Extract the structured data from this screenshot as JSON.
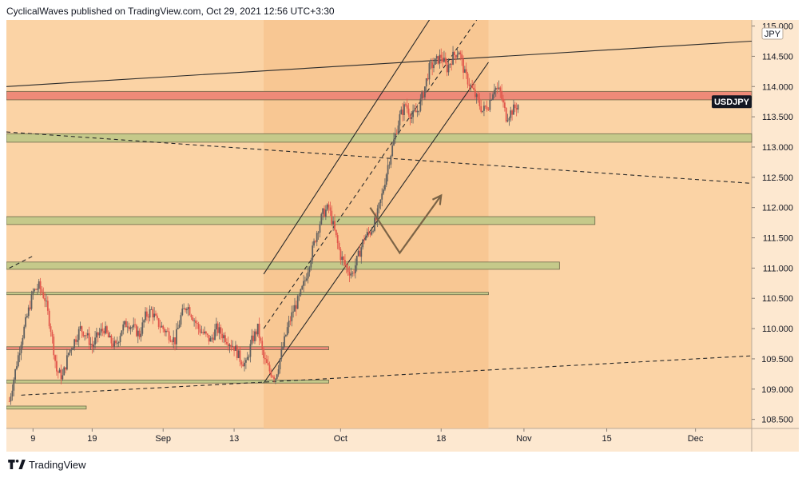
{
  "header": {
    "text": "CyclicalWaves published on TradingView.com, Oct 29, 2021 12:56 UTC+3:30"
  },
  "footer": {
    "brand": "TradingView",
    "logo": "tradingview-logo-icon"
  },
  "colors": {
    "background": "#fbd3a5",
    "axis_background": "#fde8d0",
    "candle_up": "#5f5f5f",
    "candle_down": "#e2574c",
    "zone_olive": "#c5c98a",
    "zone_red": "#ee8a78",
    "channel_fill": "#f7c48f",
    "line": "#2a2a2a",
    "arrow": "#7b6346",
    "label_bg": "#131722"
  },
  "chart_data": {
    "type": "candlestick",
    "symbol": "USDJPY",
    "currency": "JPY",
    "ylim": [
      108.35,
      115.1
    ],
    "y_ticks": [
      "115.000",
      "114.500",
      "114.000",
      "113.500",
      "113.000",
      "112.500",
      "112.000",
      "111.500",
      "111.000",
      "110.500",
      "110.000",
      "109.500",
      "109.000",
      "108.500"
    ],
    "x_tick_labels": [
      {
        "label": "9",
        "day": 9
      },
      {
        "label": "19",
        "day": 19
      },
      {
        "label": "Sep",
        "day": 31
      },
      {
        "label": "13",
        "day": 43
      },
      {
        "label": "Oct",
        "day": 61
      },
      {
        "label": "18",
        "day": 78
      },
      {
        "label": "Nov",
        "day": 92
      },
      {
        "label": "15",
        "day": 106
      },
      {
        "label": "Dec",
        "day": 121
      }
    ],
    "xlim": [
      4.5,
      130.5
    ],
    "last_price_label": "USDJPY",
    "last_price": 113.75,
    "price_path": [
      [
        5,
        108.8
      ],
      [
        6,
        109.3
      ],
      [
        7,
        109.8
      ],
      [
        8,
        110.2
      ],
      [
        9,
        110.6
      ],
      [
        10,
        110.7
      ],
      [
        11,
        110.5
      ],
      [
        12,
        110.0
      ],
      [
        13,
        109.3
      ],
      [
        14,
        109.2
      ],
      [
        15,
        109.6
      ],
      [
        16,
        109.8
      ],
      [
        17,
        110.0
      ],
      [
        18,
        109.9
      ],
      [
        19,
        109.7
      ],
      [
        20,
        109.9
      ],
      [
        21,
        110.0
      ],
      [
        22,
        109.8
      ],
      [
        23,
        109.7
      ],
      [
        24,
        110.0
      ],
      [
        25,
        110.1
      ],
      [
        26,
        110.0
      ],
      [
        27,
        109.9
      ],
      [
        28,
        110.2
      ],
      [
        29,
        110.3
      ],
      [
        30,
        110.1
      ],
      [
        31,
        110.0
      ],
      [
        32,
        109.9
      ],
      [
        33,
        109.8
      ],
      [
        34,
        110.2
      ],
      [
        35,
        110.4
      ],
      [
        36,
        110.2
      ],
      [
        37,
        110.0
      ],
      [
        38,
        109.9
      ],
      [
        39,
        109.8
      ],
      [
        40,
        110.0
      ],
      [
        41,
        109.9
      ],
      [
        42,
        109.8
      ],
      [
        43,
        109.7
      ],
      [
        44,
        109.5
      ],
      [
        45,
        109.4
      ],
      [
        46,
        109.8
      ],
      [
        47,
        110.0
      ],
      [
        48,
        109.5
      ],
      [
        49,
        109.3
      ],
      [
        50,
        109.2
      ],
      [
        51,
        109.6
      ],
      [
        52,
        110.0
      ],
      [
        53,
        110.3
      ],
      [
        54,
        110.5
      ],
      [
        55,
        110.8
      ],
      [
        56,
        111.2
      ],
      [
        57,
        111.6
      ],
      [
        58,
        111.9
      ],
      [
        59,
        112.0
      ],
      [
        60,
        111.6
      ],
      [
        61,
        111.2
      ],
      [
        62,
        111.0
      ],
      [
        63,
        110.9
      ],
      [
        64,
        111.2
      ],
      [
        65,
        111.5
      ],
      [
        66,
        111.6
      ],
      [
        67,
        111.8
      ],
      [
        68,
        112.2
      ],
      [
        69,
        112.7
      ],
      [
        70,
        113.1
      ],
      [
        71,
        113.5
      ],
      [
        72,
        113.7
      ],
      [
        73,
        113.5
      ],
      [
        74,
        113.6
      ],
      [
        75,
        113.9
      ],
      [
        76,
        114.3
      ],
      [
        77,
        114.4
      ],
      [
        78,
        114.5
      ],
      [
        79,
        114.3
      ],
      [
        80,
        114.5
      ],
      [
        81,
        114.6
      ],
      [
        82,
        114.2
      ],
      [
        83,
        114.0
      ],
      [
        84,
        113.8
      ],
      [
        85,
        113.6
      ],
      [
        86,
        113.7
      ],
      [
        87,
        114.0
      ],
      [
        88,
        113.9
      ],
      [
        89,
        113.5
      ],
      [
        90,
        113.6
      ],
      [
        91,
        113.7
      ]
    ],
    "zones": [
      {
        "kind": "red",
        "from": 113.78,
        "to": 113.92,
        "x0": 4.5,
        "x1": 130.5
      },
      {
        "kind": "olive",
        "from": 113.08,
        "to": 113.22,
        "x0": 4.5,
        "x1": 130.5
      },
      {
        "kind": "olive",
        "from": 111.72,
        "to": 111.85,
        "x0": 4.5,
        "x1": 104
      },
      {
        "kind": "olive",
        "from": 110.98,
        "to": 111.1,
        "x0": 4.5,
        "x1": 98
      },
      {
        "kind": "olive",
        "from": 110.56,
        "to": 110.6,
        "x0": 4.5,
        "x1": 86
      },
      {
        "kind": "red",
        "from": 109.65,
        "to": 109.7,
        "x0": 4.5,
        "x1": 59
      },
      {
        "kind": "olive",
        "from": 109.1,
        "to": 109.15,
        "x0": 4.5,
        "x1": 59
      },
      {
        "kind": "olive",
        "from": 108.67,
        "to": 108.72,
        "x0": 4.5,
        "x1": 18
      }
    ],
    "channel": {
      "lower": [
        [
          48,
          109.1
        ],
        [
          86,
          114.4
        ]
      ],
      "upper": [
        [
          48,
          110.9
        ],
        [
          86,
          116.6
        ]
      ],
      "mid": [
        [
          48,
          110.0
        ],
        [
          84,
          115.1
        ]
      ],
      "box": {
        "x0": 48,
        "x1": 86,
        "y0": 108.35,
        "y1": 115.1
      }
    },
    "trendlines": [
      {
        "style": "solid",
        "p1": [
          4.5,
          114.0
        ],
        "p2": [
          130.5,
          114.75
        ]
      },
      {
        "style": "dashed",
        "p1": [
          4.5,
          113.25
        ],
        "p2": [
          130.5,
          112.4
        ]
      },
      {
        "style": "dashed",
        "p1": [
          7,
          108.9
        ],
        "p2": [
          130.5,
          109.55
        ]
      },
      {
        "style": "dashed",
        "p1": [
          5,
          111.0
        ],
        "p2": [
          9,
          111.2
        ]
      }
    ],
    "projection_arrow": [
      [
        66,
        112.0
      ],
      [
        71,
        111.25
      ],
      [
        78,
        112.2
      ]
    ]
  }
}
